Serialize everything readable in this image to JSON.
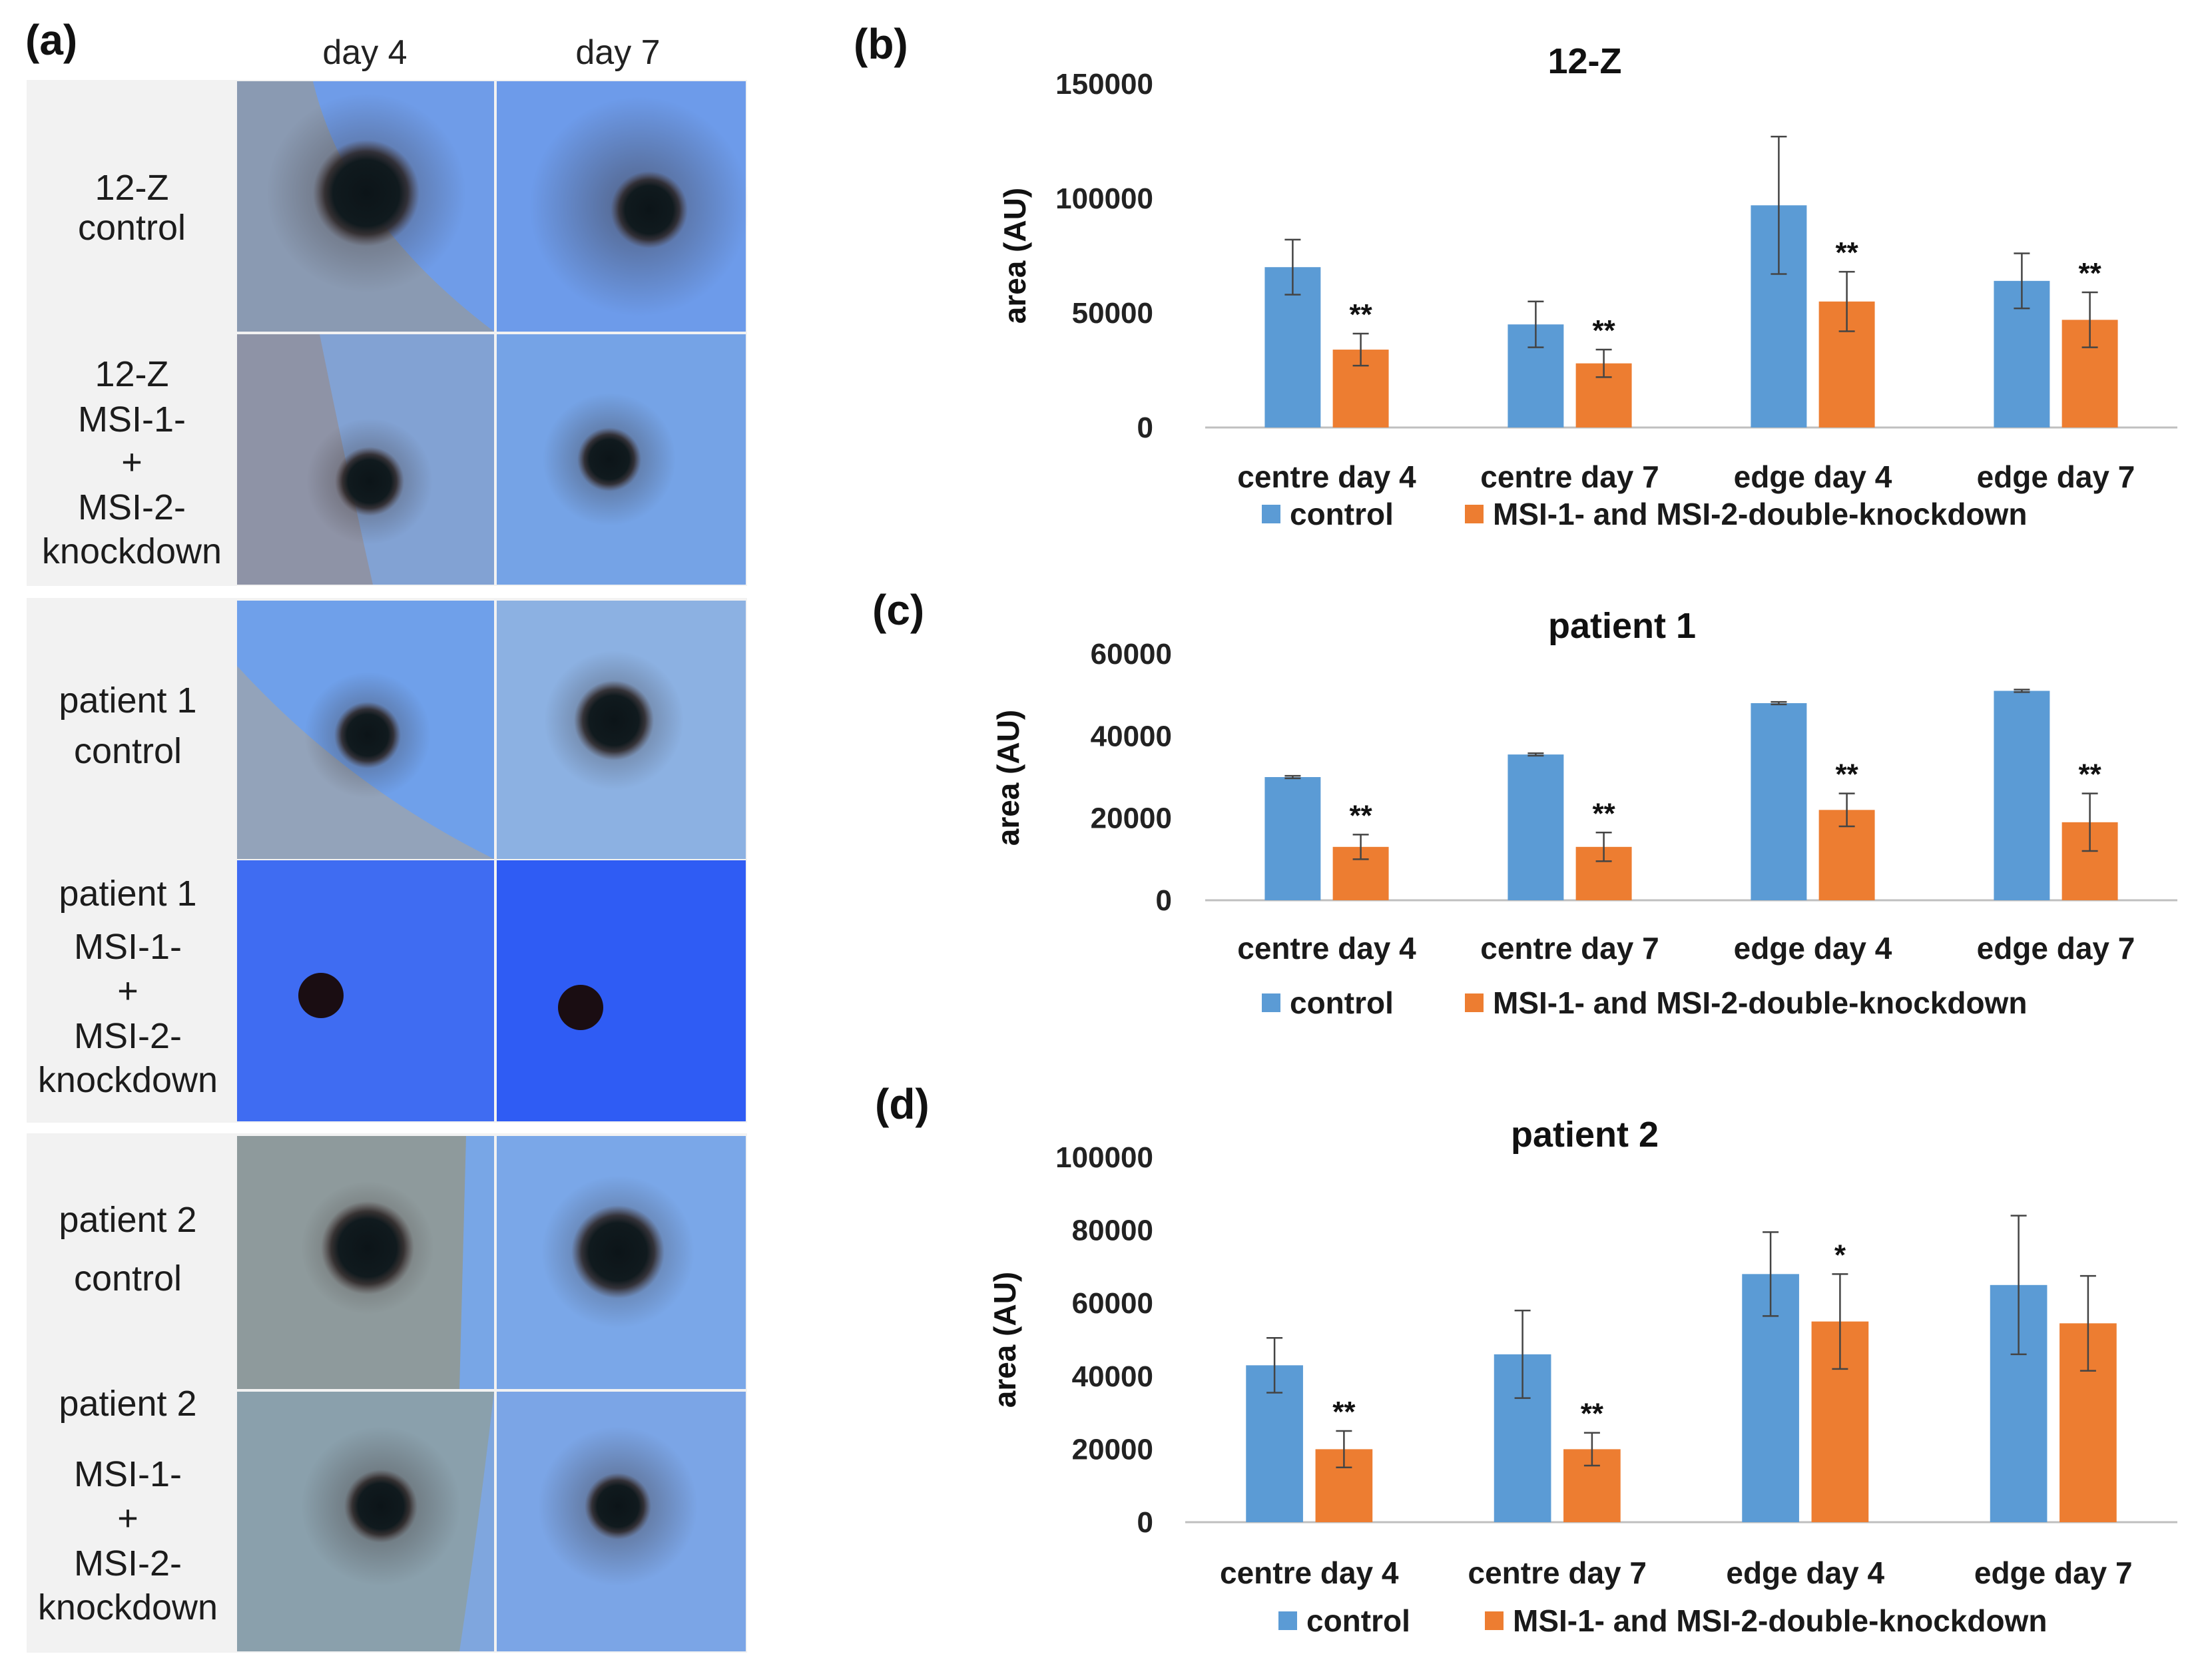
{
  "panel_a": {
    "letter": "(a)",
    "col_headers": [
      "day 4",
      "day 7"
    ],
    "row_labels": [
      [
        "12-Z",
        "control"
      ],
      [
        "12-Z",
        "MSI-1-",
        "+",
        "MSI-2-",
        "knockdown"
      ],
      [
        "patient 1",
        "control"
      ],
      [
        "patient 1",
        "MSI-1-",
        "+",
        "MSI-2-",
        "knockdown"
      ],
      [
        "patient 2",
        "control"
      ],
      [
        "patient 2",
        "MSI-1-",
        "+",
        "MSI-2-",
        "knockdown"
      ]
    ]
  },
  "colors": {
    "control": "#5B9BD5",
    "knockdown": "#ED7D31",
    "axis": "#bfbfbf"
  },
  "chart_data": [
    {
      "panel": "(b)",
      "type": "bar",
      "title": "12-Z",
      "ylabel": "area (AU)",
      "xlabel": "",
      "ylim": [
        0,
        150000
      ],
      "yticks": [
        "0",
        "50000",
        "100000",
        "150000"
      ],
      "yticks_values": [
        0,
        50000,
        100000,
        150000
      ],
      "categories": [
        "centre day 4",
        "centre day 7",
        "edge day 4",
        "edge day 7"
      ],
      "series": [
        {
          "name": "control",
          "values": [
            70000,
            45000,
            97000,
            64000
          ],
          "errors": [
            12000,
            10000,
            30000,
            12000
          ],
          "sig": [
            "",
            "",
            "",
            ""
          ]
        },
        {
          "name": "MSI-1- and MSI-2-double-knockdown",
          "values": [
            34000,
            28000,
            55000,
            47000
          ],
          "errors": [
            7000,
            6000,
            13000,
            12000
          ],
          "sig": [
            "**",
            "**",
            "**",
            "**"
          ]
        }
      ],
      "legend": "bottom"
    },
    {
      "panel": "(c)",
      "type": "bar",
      "title": "patient 1",
      "ylabel": "area (AU)",
      "xlabel": "",
      "ylim": [
        0,
        60000
      ],
      "yticks": [
        "0",
        "20000",
        "40000",
        "60000"
      ],
      "yticks_values": [
        0,
        20000,
        40000,
        60000
      ],
      "categories": [
        "centre day  4",
        "centre day 7",
        "edge day 4",
        "edge day 7"
      ],
      "series": [
        {
          "name": "control",
          "values": [
            30000,
            35500,
            48000,
            51000
          ],
          "errors": [
            300,
            300,
            300,
            300
          ],
          "sig": [
            "",
            "",
            "",
            ""
          ]
        },
        {
          "name": "MSI-1- and MSI-2-double-knockdown",
          "values": [
            13000,
            13000,
            22000,
            19000
          ],
          "errors": [
            3000,
            3500,
            4000,
            7000
          ],
          "sig": [
            "**",
            "**",
            "**",
            "**"
          ]
        }
      ],
      "legend": "bottom"
    },
    {
      "panel": "(d)",
      "type": "bar",
      "title": "patient 2",
      "ylabel": "area (AU)",
      "xlabel": "",
      "ylim": [
        0,
        100000
      ],
      "yticks": [
        "0",
        "20000",
        "40000",
        "60000",
        "80000",
        "100000"
      ],
      "yticks_values": [
        0,
        20000,
        40000,
        60000,
        80000,
        100000
      ],
      "categories": [
        "centre day 4",
        "centre day 7",
        "edge day 4",
        "edge day 7"
      ],
      "series": [
        {
          "name": "control",
          "values": [
            43000,
            46000,
            68000,
            65000
          ],
          "errors": [
            7500,
            12000,
            11500,
            19000
          ],
          "sig": [
            "",
            "",
            "",
            ""
          ]
        },
        {
          "name": "MSI-1- and MSI-2-double-knockdown",
          "values": [
            20000,
            20000,
            55000,
            54500
          ],
          "errors": [
            5000,
            4500,
            13000,
            13000
          ],
          "sig": [
            "**",
            "**",
            "*",
            ""
          ]
        }
      ],
      "legend": "bottom"
    }
  ]
}
